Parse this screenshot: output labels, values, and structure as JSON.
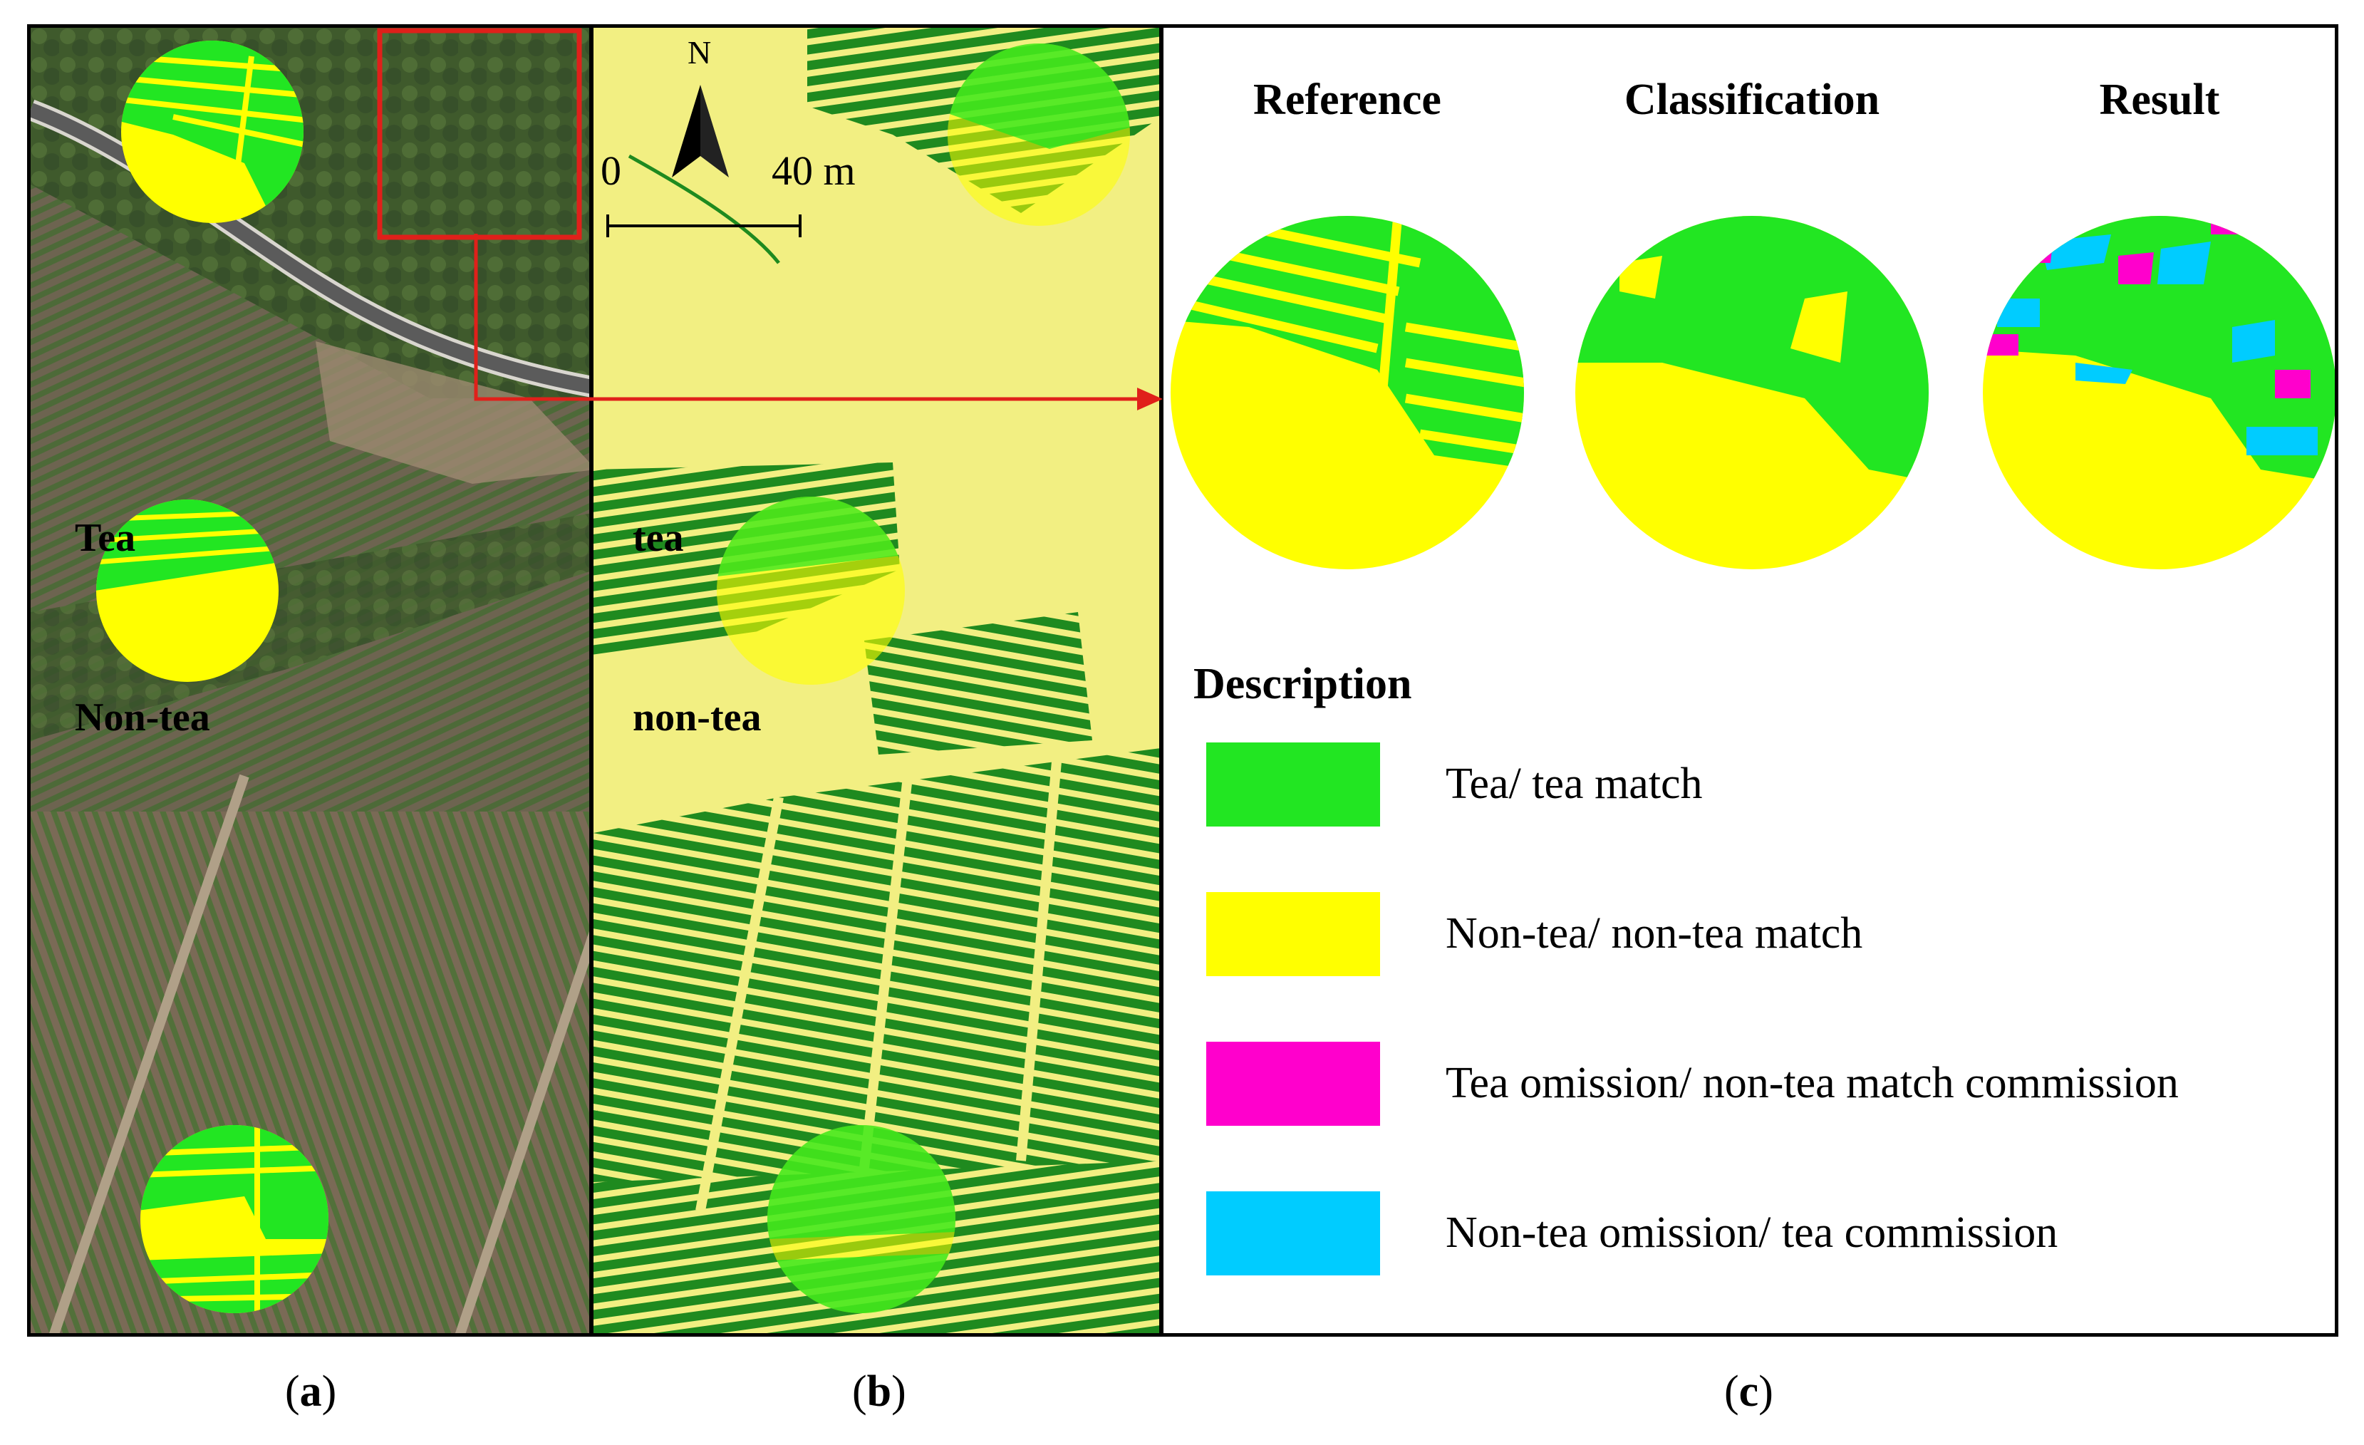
{
  "panel_a": {
    "label_tea": "Tea",
    "label_nontea": "Non-tea",
    "caption": "a"
  },
  "panel_b": {
    "north": "N",
    "scale_start": "0",
    "scale_end": "40 m",
    "label_tea": "tea",
    "label_nontea": "non-tea",
    "caption": "b"
  },
  "panel_c": {
    "col_reference": "Reference",
    "col_classification": "Classification",
    "col_result": "Result",
    "op_intersect": "∩",
    "op_equals": "=",
    "legend_title": "Description",
    "legend": [
      {
        "text": "Tea/ tea match",
        "color": "#22e622"
      },
      {
        "text": "Non-tea/ non-tea match",
        "color": "#ffff00"
      },
      {
        "text": "Tea omission/ non-tea match commission",
        "color": "#ff00cc"
      },
      {
        "text": "Non-tea omission/ tea commission",
        "color": "#00ccff"
      }
    ],
    "caption": "c"
  },
  "colors": {
    "tea_bright": "#22e622",
    "tea_dark": "#1f8a1f",
    "nontea": "#ffff00",
    "nontea_pale": "#f2ef82",
    "highlight": "#e0201a"
  }
}
